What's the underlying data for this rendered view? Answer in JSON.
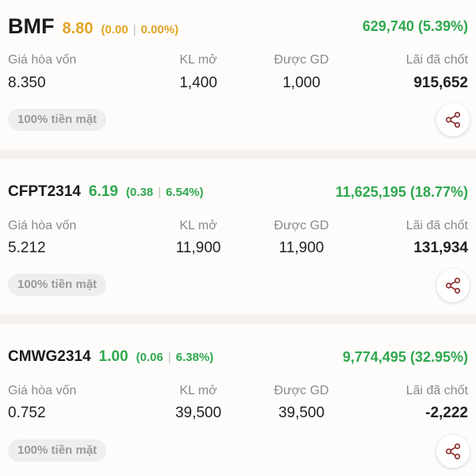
{
  "colors": {
    "up": "#2fa84f",
    "flat": "#e0a526",
    "down": "#e0252b"
  },
  "labels": {
    "breakeven": "Giá hòa vốn",
    "open_qty": "KL mở",
    "tradable": "Được GD",
    "realized": "Lãi đã chốt"
  },
  "cards": [
    {
      "symbol": "BMF",
      "price": "8.80",
      "change_open": "(0.00",
      "change_pct": "0.00%)",
      "pnl": "629,740 (5.39%)",
      "breakeven": "8.350",
      "open_qty": "1,400",
      "tradable": "1,000",
      "realized": "915,652",
      "chip": "100% tiền mặt",
      "share_icon": "share-icon"
    },
    {
      "symbol": "CFPT2314",
      "price": "6.19",
      "change_open": "(0.38",
      "change_pct": "6.54%)",
      "pnl": "11,625,195 (18.77%)",
      "breakeven": "5.212",
      "open_qty": "11,900",
      "tradable": "11,900",
      "realized": "131,934",
      "chip": "100% tiền mặt",
      "share_icon": "share-icon"
    },
    {
      "symbol": "CMWG2314",
      "price": "1.00",
      "change_open": "(0.06",
      "change_pct": "6.38%)",
      "pnl": "9,774,495 (32.95%)",
      "breakeven": "0.752",
      "open_qty": "39,500",
      "tradable": "39,500",
      "realized": "-2,222",
      "chip": "100% tiền mặt",
      "share_icon": "share-icon"
    }
  ]
}
